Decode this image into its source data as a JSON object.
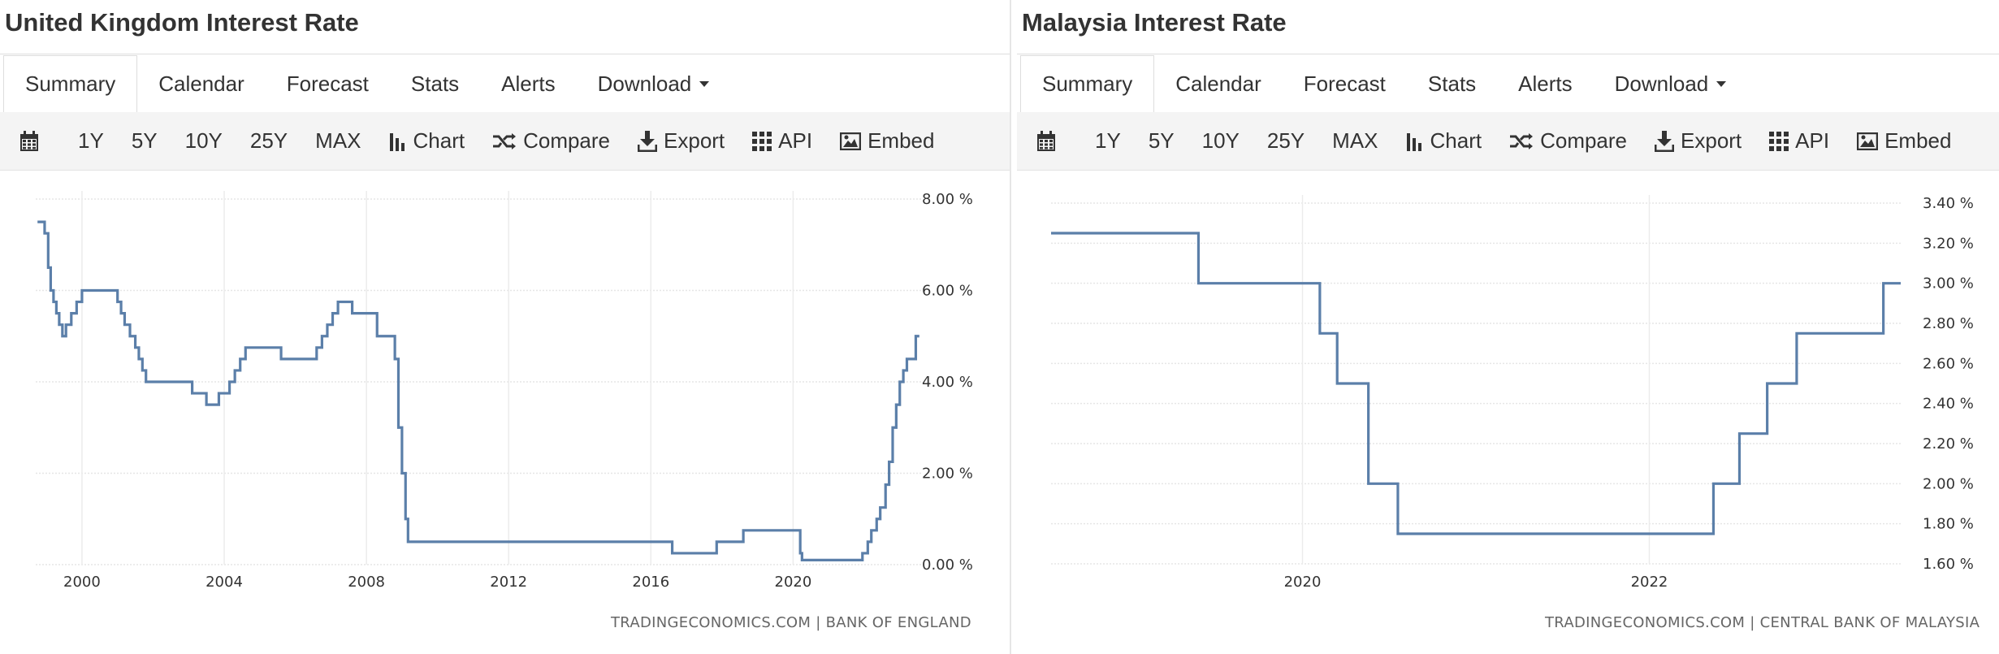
{
  "panels": [
    {
      "title": "United Kingdom Interest Rate",
      "tabs": [
        {
          "label": "Summary",
          "active": true
        },
        {
          "label": "Calendar"
        },
        {
          "label": "Forecast"
        },
        {
          "label": "Stats"
        },
        {
          "label": "Alerts"
        },
        {
          "label": "Download"
        }
      ],
      "toolbar": {
        "ranges": [
          "1Y",
          "5Y",
          "10Y",
          "25Y",
          "MAX"
        ],
        "chart": "Chart",
        "compare": "Compare",
        "export": "Export",
        "api": "API",
        "embed": "Embed"
      },
      "credit": "TRADINGECONOMICS.COM | BANK OF ENGLAND"
    },
    {
      "title": "Malaysia Interest Rate",
      "tabs": [
        {
          "label": "Summary",
          "active": true
        },
        {
          "label": "Calendar"
        },
        {
          "label": "Forecast"
        },
        {
          "label": "Stats"
        },
        {
          "label": "Alerts"
        },
        {
          "label": "Download"
        }
      ],
      "toolbar": {
        "ranges": [
          "1Y",
          "5Y",
          "10Y",
          "25Y",
          "MAX"
        ],
        "chart": "Chart",
        "compare": "Compare",
        "export": "Export",
        "api": "API",
        "embed": "Embed"
      },
      "credit": "TRADINGECONOMICS.COM | CENTRAL BANK OF MALAYSIA"
    }
  ],
  "chart_data": [
    {
      "type": "line",
      "step": true,
      "line_color": "#5b7fa9",
      "xlim": [
        1998.7,
        2023.6
      ],
      "ylim": [
        0,
        8
      ],
      "x_ticks": [
        2000,
        2004,
        2008,
        2012,
        2016,
        2020
      ],
      "x_tick_labels": [
        "2000",
        "2004",
        "2008",
        "2012",
        "2016",
        "2020"
      ],
      "y_ticks": [
        0,
        2,
        4,
        6,
        8
      ],
      "y_tick_labels": [
        "0.00 %",
        "2.00 %",
        "4.00 %",
        "6.00 %",
        "8.00 %"
      ],
      "y_axis_side": "right",
      "grid": true,
      "x": [
        1998.75,
        1998.95,
        1999.05,
        1999.12,
        1999.2,
        1999.28,
        1999.36,
        1999.45,
        1999.55,
        1999.7,
        1999.85,
        2000.0,
        2000.1,
        2000.2,
        2001.0,
        2001.1,
        2001.2,
        2001.35,
        2001.5,
        2001.6,
        2001.7,
        2001.8,
        2001.9,
        2003.1,
        2003.5,
        2003.85,
        2004.0,
        2004.15,
        2004.3,
        2004.45,
        2004.6,
        2004.75,
        2005.6,
        2006.6,
        2006.75,
        2006.9,
        2007.05,
        2007.2,
        2007.4,
        2007.6,
        2008.3,
        2008.8,
        2008.9,
        2009.0,
        2009.1,
        2009.17,
        2016.6,
        2017.85,
        2018.6,
        2020.2,
        2020.25,
        2021.95,
        2022.1,
        2022.2,
        2022.35,
        2022.45,
        2022.6,
        2022.7,
        2022.8,
        2022.9,
        2023.0,
        2023.1,
        2023.2,
        2023.35,
        2023.45,
        2023.55
      ],
      "y": [
        7.5,
        7.25,
        6.5,
        6.0,
        5.75,
        5.5,
        5.25,
        5.0,
        5.25,
        5.5,
        5.75,
        6.0,
        6.0,
        6.0,
        5.75,
        5.5,
        5.25,
        5.0,
        4.75,
        4.5,
        4.25,
        4.0,
        4.0,
        3.75,
        3.5,
        3.75,
        3.75,
        4.0,
        4.25,
        4.5,
        4.75,
        4.75,
        4.5,
        4.75,
        5.0,
        5.25,
        5.5,
        5.75,
        5.75,
        5.5,
        5.0,
        4.5,
        3.0,
        2.0,
        1.0,
        0.5,
        0.25,
        0.5,
        0.75,
        0.25,
        0.1,
        0.25,
        0.5,
        0.75,
        1.0,
        1.25,
        1.75,
        2.25,
        3.0,
        3.5,
        4.0,
        4.25,
        4.5,
        4.5,
        5.0,
        5.0
      ]
    },
    {
      "type": "line",
      "step": true,
      "line_color": "#5b7fa9",
      "xlim": [
        2018.55,
        2023.45
      ],
      "ylim": [
        1.6,
        3.4
      ],
      "x_ticks": [
        2020,
        2022
      ],
      "x_tick_labels": [
        "2020",
        "2022"
      ],
      "y_ticks": [
        1.6,
        1.8,
        2.0,
        2.2,
        2.4,
        2.6,
        2.8,
        3.0,
        3.2,
        3.4
      ],
      "y_tick_labels": [
        "1.60 %",
        "1.80 %",
        "2.00 %",
        "2.20 %",
        "2.40 %",
        "2.60 %",
        "2.80 %",
        "3.00 %",
        "3.20 %",
        "3.40 %"
      ],
      "y_axis_side": "right",
      "grid": true,
      "x": [
        2018.55,
        2019.4,
        2020.1,
        2020.2,
        2020.38,
        2020.55,
        2022.37,
        2022.52,
        2022.68,
        2022.85,
        2023.35,
        2023.45
      ],
      "y": [
        3.25,
        3.0,
        2.75,
        2.5,
        2.0,
        1.75,
        2.0,
        2.25,
        2.5,
        2.75,
        3.0,
        3.0
      ]
    }
  ]
}
